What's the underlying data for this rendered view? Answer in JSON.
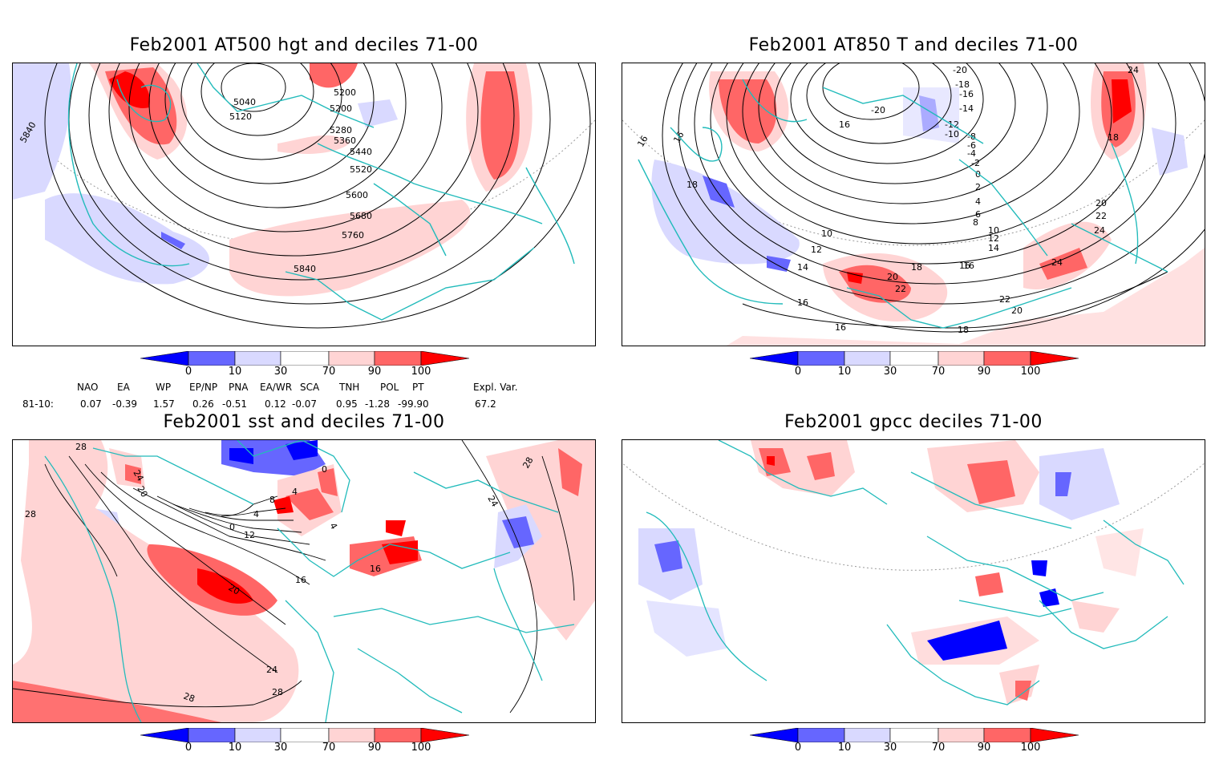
{
  "panels": {
    "p1": {
      "title": "Feb2001 AT500 hgt and deciles 71-00",
      "contour_labels": [
        "5840",
        "5040",
        "5120",
        "5200",
        "5200",
        "5280",
        "5360",
        "5440",
        "5520",
        "5600",
        "5680",
        "5760",
        "5840"
      ]
    },
    "p2": {
      "title": "Feb2001 AT850 T and deciles 71-00",
      "contour_labels": [
        "-20",
        "-18",
        "-16",
        "-14",
        "-12",
        "-10",
        "-8",
        "-6",
        "-4",
        "-2",
        "0",
        "2",
        "4",
        "6",
        "8",
        "10",
        "12",
        "14",
        "16",
        "18",
        "20",
        "22",
        "24",
        "-20",
        "16",
        "16",
        "16",
        "18",
        "18",
        "20",
        "22",
        "24",
        "24",
        "20",
        "22",
        "18",
        "16",
        "14",
        "12",
        "10",
        "16",
        "16"
      ]
    },
    "p3": {
      "title": "Feb2001 sst and deciles 71-00",
      "contour_labels": [
        "28",
        "28",
        "24",
        "20",
        "0",
        "4",
        "8",
        "12",
        "16",
        "20",
        "24",
        "28",
        "28",
        "16",
        "4",
        "0",
        "4",
        "24",
        "28"
      ]
    },
    "p4": {
      "title": "Feb2001 gpcc deciles 71-00"
    }
  },
  "colorbar": {
    "ticks": [
      "0",
      "10",
      "30",
      "70",
      "90",
      "100"
    ],
    "colors": [
      "#0000ff",
      "#6666ff",
      "#d9d9ff",
      "#ffffff",
      "#ffd4d4",
      "#ff6666",
      "#ff0000"
    ]
  },
  "indices": {
    "headers": [
      "NAO",
      "EA",
      "WP",
      "EP/NP",
      "PNA",
      "EA/WR",
      "SCA",
      "TNH",
      "POL",
      "PT",
      "Expl. Var."
    ],
    "row_label": "81-10:",
    "values": [
      "0.07",
      "-0.39",
      "1.57",
      "0.26",
      "-0.51",
      "0.12",
      "-0.07",
      "0.95",
      "-1.28",
      "-99.90",
      "67.2"
    ]
  },
  "colors": {
    "coast": "#22bbbb",
    "contour": "#000000"
  }
}
